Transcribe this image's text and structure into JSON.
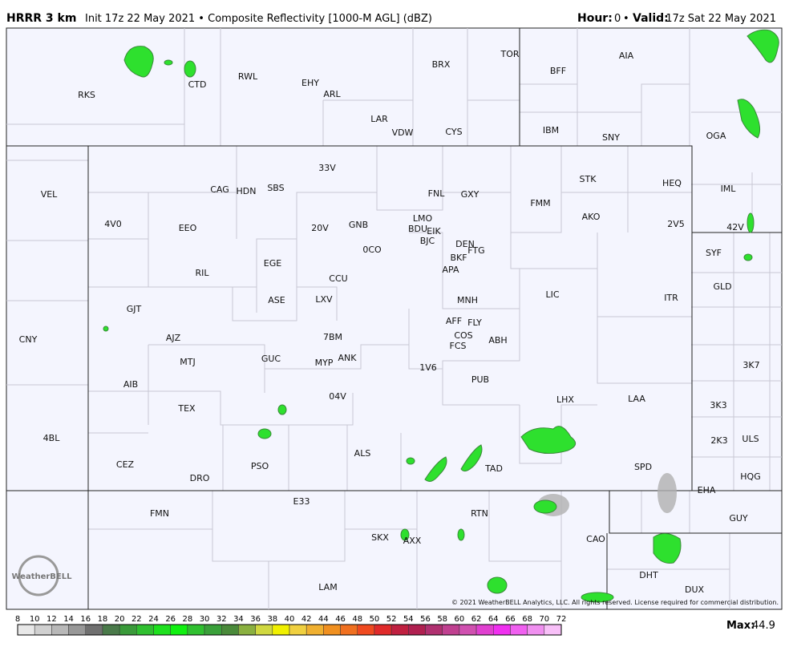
{
  "header": {
    "model": "HRRR 3 km",
    "description": "Init 17z 22 May 2021 • Composite Reflectivity [1000-M AGL] (dBZ)",
    "hour_label": "Hour:",
    "hour": 0,
    "separator": "•",
    "valid_label": "Valid:",
    "valid": "17z Sat 22 May 2021"
  },
  "stations": [
    "RKS",
    "CTD",
    "RWL",
    "EHY",
    "ARL",
    "LAR",
    "VDW",
    "CYS",
    "BRX",
    "TOR",
    "BFF",
    "AIA",
    "IBM",
    "SNY",
    "OGA",
    "VEL",
    "CAG",
    "HDN",
    "SBS",
    "33V",
    "FNL",
    "GXY",
    "STK",
    "HEQ",
    "IML",
    "FMM",
    "LMO",
    "AKO",
    "4V0",
    "EEO",
    "20V",
    "GNB",
    "BDU",
    "EIK",
    "2V5",
    "42V",
    "BJC",
    "DEN",
    "FTG",
    "0CO",
    "EGE",
    "BKF",
    "RIL",
    "APA",
    "SYF",
    "CCU",
    "GLD",
    "ASE",
    "LXV",
    "MNH",
    "LIC",
    "ITR",
    "GJT",
    "AFF",
    "FLY",
    "7BM",
    "AJZ",
    "COS",
    "ABH",
    "FCS",
    "CNY",
    "MTJ",
    "GUC",
    "MYP",
    "ANK",
    "1V6",
    "3K7",
    "PUB",
    "AIB",
    "04V",
    "LHX",
    "LAA",
    "TEX",
    "3K3",
    "4BL",
    "ULS",
    "2K3",
    "ALS",
    "CEZ",
    "PSO",
    "TAD",
    "SPD",
    "DRO",
    "HQG",
    "EHA",
    "FMN",
    "E33",
    "RTN",
    "GUY",
    "SKX",
    "AXX",
    "CAO",
    "DHT",
    "LAM",
    "DUX"
  ],
  "logo": "WeatherBELL",
  "copyright": "© 2021 WeatherBELL Analytics, LLC. All rights reserved. License required for commercial distribution.",
  "colorbar": {
    "ticks": [
      8,
      10,
      12,
      14,
      16,
      18,
      20,
      22,
      24,
      26,
      28,
      30,
      32,
      34,
      36,
      38,
      40,
      42,
      44,
      46,
      48,
      50,
      52,
      54,
      56,
      58,
      60,
      62,
      64,
      66,
      68,
      70,
      72
    ],
    "colors": [
      "#e8e8e8",
      "#d0d0d0",
      "#b8b8b8",
      "#989898",
      "#707070",
      "#4a7a4a",
      "#3a9a3a",
      "#2fbf2f",
      "#1ee01e",
      "#10f010",
      "#30c030",
      "#3aa03a",
      "#4a8a3a",
      "#8ab040",
      "#d0d840",
      "#f0f000",
      "#f0d040",
      "#f0b030",
      "#f09020",
      "#f07020",
      "#f04a20",
      "#e02a2a",
      "#c02040",
      "#b02050",
      "#b03070",
      "#c04090",
      "#d050b0",
      "#e040d0",
      "#f030f0",
      "#f060f0",
      "#f090f0",
      "#f8c0f8"
    ]
  },
  "footer": {
    "max_label": "Max:",
    "max_value": 44.9
  }
}
